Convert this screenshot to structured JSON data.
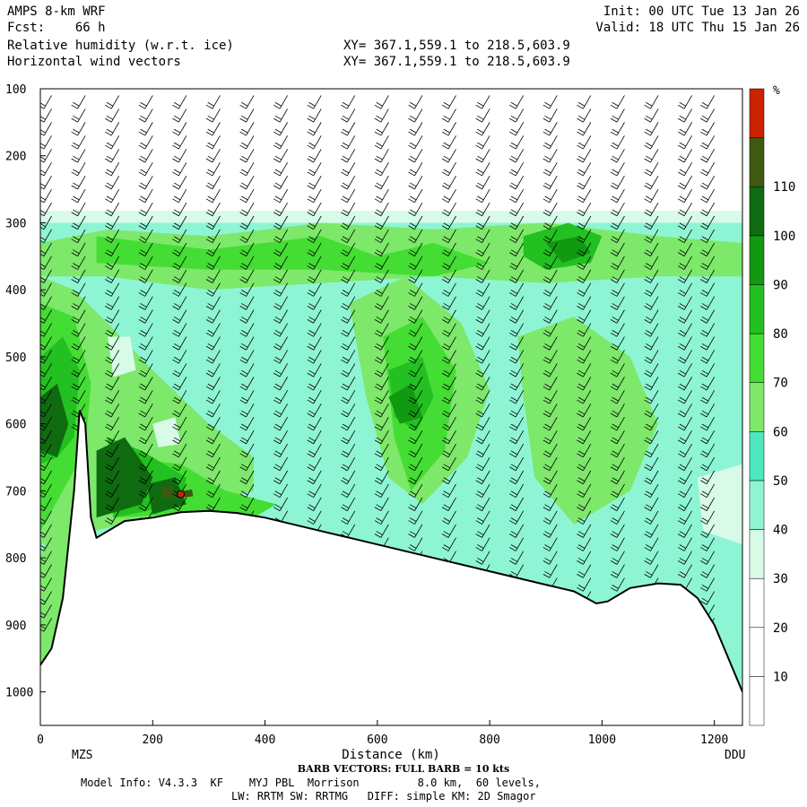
{
  "header": {
    "model": "AMPS 8-km WRF",
    "fcst_label": "Fcst:",
    "fcst_value": "66 h",
    "field1": "Relative humidity (w.r.t. ice)",
    "field2": "Horizontal wind vectors",
    "init": "Init: 00 UTC Tue 13 Jan 26",
    "valid": "Valid: 18 UTC Thu 15 Jan 26",
    "xy1": "XY= 367.1,559.1 to 218.5,603.9",
    "xy2": "XY= 367.1,559.1 to 218.5,603.9"
  },
  "footer": {
    "barb_note": "BARB VECTORS: FULL BARB = 10 kts",
    "model_info": "Model Info: V4.3.3  KF    MYJ PBL  Morrison         8.0 km,  60 levels,",
    "physics": "LW: RRTM SW: RRTMG   DIFF: simple KM: 2D Smagor"
  },
  "chart_data": {
    "type": "heatmap",
    "title": "Relative humidity (w.r.t. ice)",
    "xlabel": "Distance (km)",
    "ylabel": "",
    "x_ticks": [
      0,
      200,
      400,
      600,
      800,
      1000,
      1200
    ],
    "y_ticks": [
      100,
      200,
      300,
      400,
      500,
      600,
      700,
      800,
      900,
      1000
    ],
    "xlim": [
      0,
      1250
    ],
    "ylim": [
      1050,
      100
    ],
    "endpoint_labels": {
      "left": "MZS",
      "right": "DDU"
    },
    "colorbar": {
      "unit": "%",
      "levels": [
        10,
        20,
        30,
        40,
        50,
        60,
        70,
        80,
        90,
        100,
        110
      ],
      "colors": [
        "#ffffff",
        "#ffffff",
        "#ffffff",
        "#d8fbe8",
        "#8ef5d4",
        "#4de8c0",
        "#7de86a",
        "#44dd33",
        "#22c020",
        "#119911",
        "#0f6b0f",
        "#3d5a10",
        "#cc2200"
      ]
    },
    "terrain_profile": [
      {
        "x": 0,
        "p": 960
      },
      {
        "x": 20,
        "p": 935
      },
      {
        "x": 40,
        "p": 860
      },
      {
        "x": 60,
        "p": 700
      },
      {
        "x": 70,
        "p": 580
      },
      {
        "x": 80,
        "p": 600
      },
      {
        "x": 90,
        "p": 740
      },
      {
        "x": 100,
        "p": 770
      },
      {
        "x": 120,
        "p": 760
      },
      {
        "x": 150,
        "p": 745
      },
      {
        "x": 200,
        "p": 740
      },
      {
        "x": 250,
        "p": 732
      },
      {
        "x": 300,
        "p": 730
      },
      {
        "x": 350,
        "p": 733
      },
      {
        "x": 400,
        "p": 740
      },
      {
        "x": 450,
        "p": 750
      },
      {
        "x": 500,
        "p": 760
      },
      {
        "x": 550,
        "p": 770
      },
      {
        "x": 600,
        "p": 780
      },
      {
        "x": 650,
        "p": 790
      },
      {
        "x": 700,
        "p": 800
      },
      {
        "x": 750,
        "p": 810
      },
      {
        "x": 800,
        "p": 820
      },
      {
        "x": 850,
        "p": 830
      },
      {
        "x": 900,
        "p": 840
      },
      {
        "x": 950,
        "p": 850
      },
      {
        "x": 990,
        "p": 868
      },
      {
        "x": 1010,
        "p": 865
      },
      {
        "x": 1050,
        "p": 845
      },
      {
        "x": 1100,
        "p": 838
      },
      {
        "x": 1140,
        "p": 840
      },
      {
        "x": 1170,
        "p": 860
      },
      {
        "x": 1200,
        "p": 900
      },
      {
        "x": 1230,
        "p": 960
      },
      {
        "x": 1250,
        "p": 1000
      }
    ],
    "rh_regions": [
      {
        "rh": 45,
        "poly": [
          [
            0,
            1000
          ],
          [
            0,
            290
          ],
          [
            1250,
            290
          ],
          [
            1250,
            1000
          ]
        ]
      },
      {
        "rh": 35,
        "poly": [
          [
            0,
            300
          ],
          [
            0,
            282
          ],
          [
            1250,
            282
          ],
          [
            1250,
            300
          ]
        ]
      },
      {
        "rh": 65,
        "poly": [
          [
            0,
            330
          ],
          [
            120,
            310
          ],
          [
            300,
            320
          ],
          [
            500,
            300
          ],
          [
            700,
            310
          ],
          [
            900,
            300
          ],
          [
            1100,
            320
          ],
          [
            1250,
            330
          ],
          [
            1250,
            380
          ],
          [
            1100,
            380
          ],
          [
            900,
            390
          ],
          [
            700,
            380
          ],
          [
            500,
            390
          ],
          [
            300,
            400
          ],
          [
            120,
            380
          ],
          [
            0,
            380
          ]
        ]
      },
      {
        "rh": 65,
        "poly": [
          [
            0,
            380
          ],
          [
            60,
            400
          ],
          [
            120,
            450
          ],
          [
            200,
            520
          ],
          [
            300,
            600
          ],
          [
            380,
            650
          ],
          [
            380,
            700
          ],
          [
            0,
            780
          ]
        ]
      },
      {
        "rh": 65,
        "poly": [
          [
            550,
            420
          ],
          [
            650,
            380
          ],
          [
            750,
            450
          ],
          [
            800,
            550
          ],
          [
            760,
            650
          ],
          [
            680,
            720
          ],
          [
            620,
            680
          ],
          [
            580,
            560
          ]
        ]
      },
      {
        "rh": 65,
        "poly": [
          [
            850,
            470
          ],
          [
            950,
            440
          ],
          [
            1050,
            500
          ],
          [
            1100,
            600
          ],
          [
            1050,
            700
          ],
          [
            950,
            750
          ],
          [
            880,
            680
          ],
          [
            860,
            560
          ]
        ]
      },
      {
        "rh": 65,
        "poly": [
          [
            0,
            800
          ],
          [
            40,
            700
          ],
          [
            60,
            760
          ],
          [
            40,
            900
          ],
          [
            0,
            960
          ]
        ]
      },
      {
        "rh": 45,
        "poly": [
          [
            1120,
            600
          ],
          [
            1250,
            560
          ],
          [
            1250,
            800
          ],
          [
            1150,
            750
          ],
          [
            1110,
            680
          ]
        ]
      },
      {
        "rh": 35,
        "poly": [
          [
            1170,
            680
          ],
          [
            1250,
            660
          ],
          [
            1250,
            780
          ],
          [
            1180,
            760
          ]
        ]
      },
      {
        "rh": 75,
        "poly": [
          [
            100,
            320
          ],
          [
            300,
            340
          ],
          [
            500,
            320
          ],
          [
            600,
            350
          ],
          [
            700,
            330
          ],
          [
            800,
            360
          ],
          [
            700,
            380
          ],
          [
            500,
            370
          ],
          [
            300,
            370
          ],
          [
            100,
            360
          ]
        ]
      },
      {
        "rh": 75,
        "poly": [
          [
            0,
            420
          ],
          [
            60,
            440
          ],
          [
            90,
            540
          ],
          [
            80,
            640
          ],
          [
            40,
            700
          ],
          [
            0,
            760
          ]
        ]
      },
      {
        "rh": 75,
        "poly": [
          [
            610,
            470
          ],
          [
            680,
            440
          ],
          [
            740,
            520
          ],
          [
            720,
            640
          ],
          [
            660,
            700
          ],
          [
            630,
            620
          ]
        ]
      },
      {
        "rh": 75,
        "poly": [
          [
            140,
            650
          ],
          [
            250,
            660
          ],
          [
            330,
            700
          ],
          [
            420,
            720
          ],
          [
            380,
            740
          ],
          [
            250,
            735
          ],
          [
            130,
            740
          ]
        ]
      },
      {
        "rh": 85,
        "poly": [
          [
            860,
            320
          ],
          [
            940,
            300
          ],
          [
            1000,
            320
          ],
          [
            980,
            360
          ],
          [
            900,
            370
          ],
          [
            860,
            350
          ]
        ]
      },
      {
        "rh": 85,
        "poly": [
          [
            0,
            500
          ],
          [
            40,
            470
          ],
          [
            70,
            520
          ],
          [
            60,
            620
          ],
          [
            30,
            650
          ],
          [
            0,
            660
          ]
        ]
      },
      {
        "rh": 85,
        "poly": [
          [
            620,
            520
          ],
          [
            680,
            500
          ],
          [
            700,
            560
          ],
          [
            670,
            610
          ],
          [
            630,
            590
          ]
        ]
      },
      {
        "rh": 85,
        "poly": [
          [
            120,
            620
          ],
          [
            180,
            640
          ],
          [
            260,
            680
          ],
          [
            250,
            720
          ],
          [
            130,
            740
          ]
        ]
      },
      {
        "rh": 95,
        "poly": [
          [
            900,
            330
          ],
          [
            960,
            320
          ],
          [
            980,
            345
          ],
          [
            930,
            360
          ]
        ]
      },
      {
        "rh": 95,
        "poly": [
          [
            620,
            560
          ],
          [
            660,
            540
          ],
          [
            680,
            590
          ],
          [
            640,
            600
          ]
        ]
      },
      {
        "rh": 105,
        "poly": [
          [
            0,
            560
          ],
          [
            30,
            540
          ],
          [
            50,
            600
          ],
          [
            30,
            650
          ],
          [
            0,
            640
          ]
        ]
      },
      {
        "rh": 105,
        "poly": [
          [
            100,
            640
          ],
          [
            150,
            620
          ],
          [
            200,
            680
          ],
          [
            180,
            720
          ],
          [
            100,
            740
          ]
        ]
      },
      {
        "rh": 105,
        "poly": [
          [
            190,
            690
          ],
          [
            240,
            680
          ],
          [
            260,
            720
          ],
          [
            200,
            735
          ]
        ]
      },
      {
        "rh": 115,
        "poly": [
          [
            215,
            695
          ],
          [
            235,
            693
          ],
          [
            238,
            710
          ],
          [
            218,
            712
          ]
        ]
      },
      {
        "rh": 115,
        "poly": [
          [
            255,
            700
          ],
          [
            270,
            698
          ],
          [
            272,
            708
          ],
          [
            256,
            710
          ]
        ]
      },
      {
        "rh": 10,
        "poly": [
          [
            0,
            100
          ],
          [
            1250,
            100
          ],
          [
            1250,
            282
          ],
          [
            0,
            282
          ]
        ]
      },
      {
        "rh": 35,
        "poly": [
          [
            120,
            470
          ],
          [
            160,
            470
          ],
          [
            170,
            520
          ],
          [
            130,
            530
          ]
        ]
      },
      {
        "rh": 35,
        "poly": [
          [
            200,
            600
          ],
          [
            240,
            590
          ],
          [
            250,
            630
          ],
          [
            210,
            635
          ]
        ]
      }
    ],
    "wind_barbs": {
      "x_positions": [
        20,
        80,
        140,
        200,
        260,
        320,
        380,
        440,
        500,
        560,
        620,
        680,
        740,
        800,
        860,
        920,
        980,
        1040,
        1100,
        1160,
        1200
      ],
      "p_levels": [
        110,
        130,
        150,
        170,
        190,
        210,
        230,
        250,
        270,
        290,
        310,
        330,
        350,
        370,
        390,
        410,
        430,
        450,
        470,
        490,
        510,
        530,
        550,
        570,
        590,
        610,
        630,
        650,
        670,
        690,
        710,
        730,
        750,
        770,
        790,
        810,
        830,
        850,
        870,
        890
      ],
      "speed_kts": 20,
      "direction_deg": 210
    },
    "point_marker": {
      "x": 250,
      "p": 705
    }
  }
}
